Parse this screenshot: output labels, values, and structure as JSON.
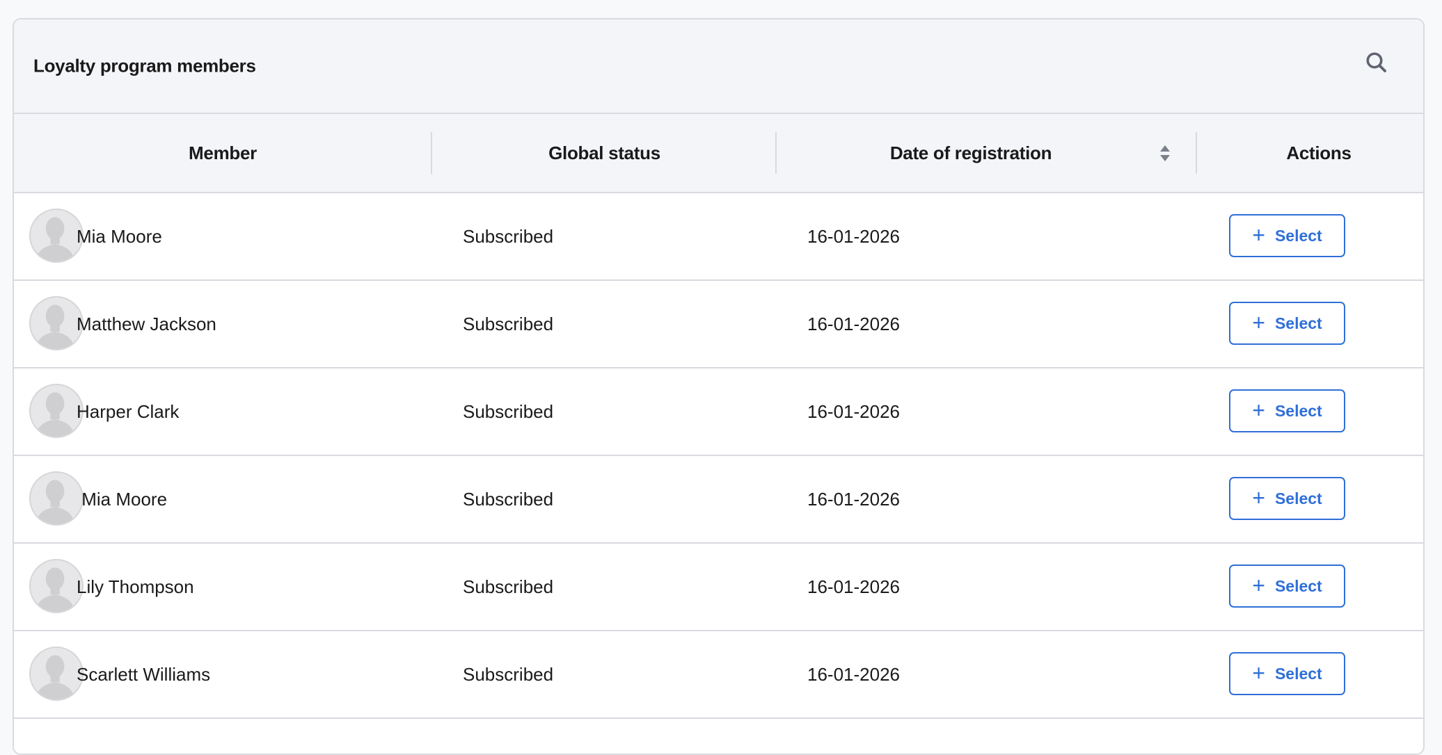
{
  "panel": {
    "title": "Loyalty program members",
    "search_icon": "search-icon"
  },
  "columns": {
    "member": "Member",
    "status": "Global status",
    "date": "Date of registration",
    "actions": "Actions"
  },
  "rows": [
    {
      "name": "Mia Moore",
      "status": "Subscribed",
      "date": "16-01-2026",
      "action": "Select"
    },
    {
      "name": "Matthew Jackson",
      "status": "Subscribed",
      "date": "16-01-2026",
      "action": "Select"
    },
    {
      "name": "Harper Clark",
      "status": "Subscribed",
      "date": "16-01-2026",
      "action": "Select"
    },
    {
      "name": " Mia Moore",
      "status": "Subscribed",
      "date": "16-01-2026",
      "action": "Select"
    },
    {
      "name": "Lily Thompson",
      "status": "Subscribed",
      "date": "16-01-2026",
      "action": "Select"
    },
    {
      "name": "Scarlett Williams",
      "status": "Subscribed",
      "date": "16-01-2026",
      "action": "Select"
    }
  ],
  "colors": {
    "accent": "#2f6fd8",
    "header_bg": "#f4f5f9",
    "border": "#d8dae0"
  }
}
